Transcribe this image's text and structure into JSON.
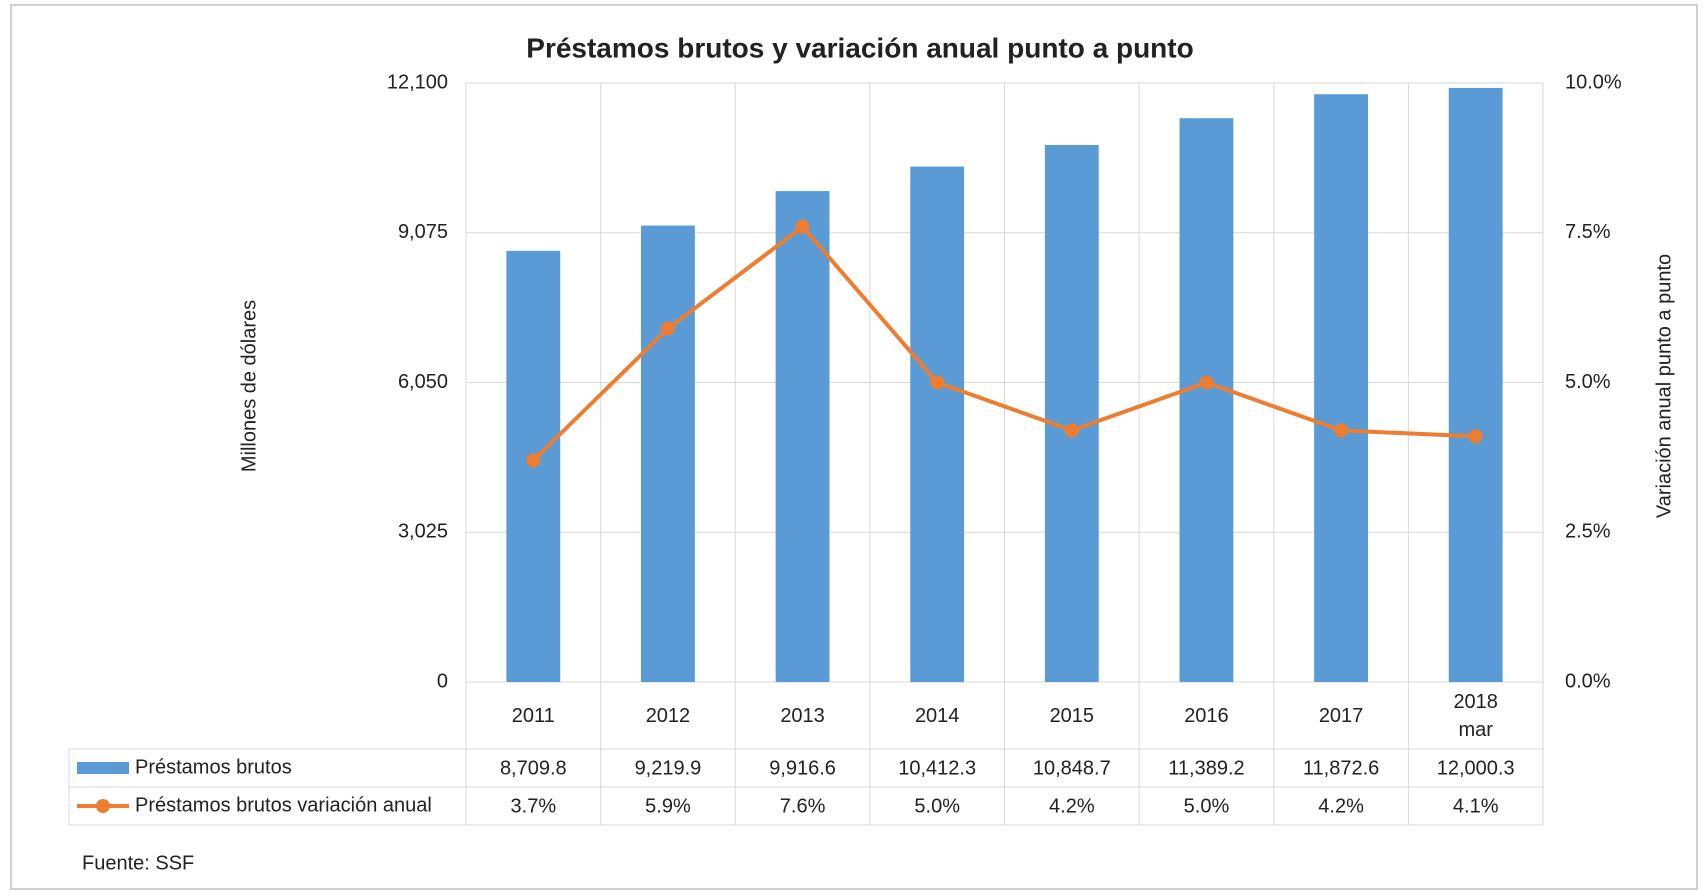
{
  "chart_data": {
    "type": "bar",
    "title": "Préstamos brutos y variación anual punto a punto",
    "y_label": "Millones de dólares",
    "y2_label": "Variación anual punto a punto",
    "source": "Fuente: SSF",
    "categories": [
      "2011",
      "2012",
      "2013",
      "2014",
      "2015",
      "2016",
      "2017",
      "2018 mar"
    ],
    "series": [
      {
        "name": "Préstamos brutos",
        "color": "#5b9bd5",
        "values": [
          8709.8,
          9219.9,
          9916.6,
          10412.3,
          10848.7,
          11389.2,
          11872.6,
          12000.3
        ],
        "value_labels": [
          "8,709.8",
          "9,219.9",
          "9,916.6",
          "10,412.3",
          "10,848.7",
          "11,389.2",
          "11,872.6",
          "12,000.3"
        ]
      },
      {
        "name": "Préstamos brutos variación anual",
        "color": "#ed7d31",
        "type": "line",
        "axis": "y2",
        "values": [
          3.7,
          5.9,
          7.6,
          5.0,
          4.2,
          5.0,
          4.2,
          4.1
        ],
        "value_labels": [
          "3.7%",
          "5.9%",
          "7.6%",
          "5.0%",
          "4.2%",
          "5.0%",
          "4.2%",
          "4.1%"
        ]
      }
    ],
    "ylim": [
      0,
      12100
    ],
    "yticks": [
      0,
      {
        "value": 3025,
        "label": "3,025"
      },
      {
        "value": 6050,
        "label": "6,050"
      },
      {
        "value": 9075,
        "label": "9,075"
      },
      {
        "value": 12100,
        "label": "12,100"
      }
    ],
    "y2lim": [
      0,
      10
    ],
    "y2ticks": [
      {
        "value": 0,
        "label": "0.0%"
      },
      {
        "value": 2.5,
        "label": "2.5%"
      },
      {
        "value": 5,
        "label": "5.0%"
      },
      {
        "value": 7.5,
        "label": "7.5%"
      },
      {
        "value": 10,
        "label": "10.0%"
      }
    ],
    "grid": true
  }
}
